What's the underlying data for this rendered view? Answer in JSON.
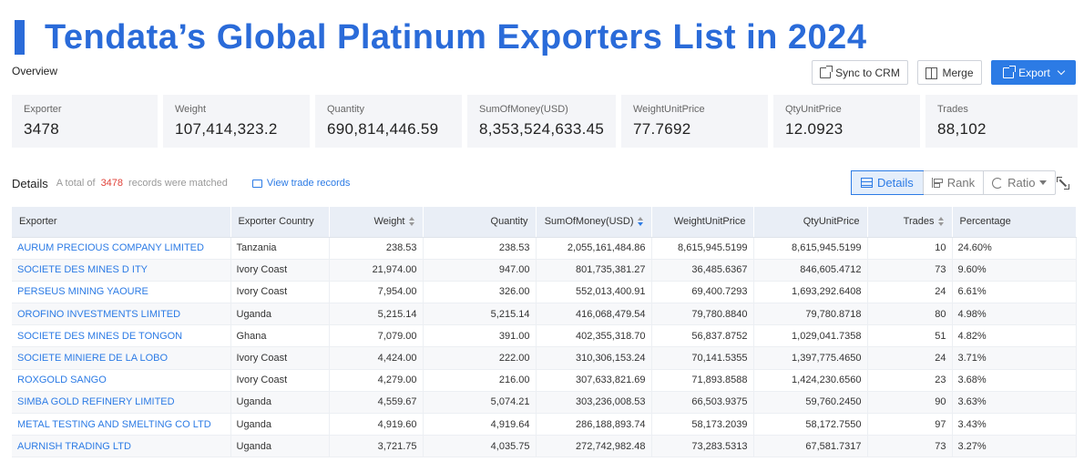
{
  "banner": {
    "title": "Tendata’s Global Platinum Exporters List in 2024"
  },
  "overview": {
    "label": "Overview"
  },
  "toolbar": {
    "sync_label": "Sync to CRM",
    "merge_label": "Merge",
    "export_label": "Export"
  },
  "stats": [
    {
      "label": "Exporter",
      "value": "3478"
    },
    {
      "label": "Weight",
      "value": "107,414,323.2"
    },
    {
      "label": "Quantity",
      "value": "690,814,446.59"
    },
    {
      "label": "SumOfMoney(USD)",
      "value": "8,353,524,633.45"
    },
    {
      "label": "WeightUnitPrice",
      "value": "77.7692"
    },
    {
      "label": "QtyUnitPrice",
      "value": "12.0923"
    },
    {
      "label": "Trades",
      "value": "88,102"
    }
  ],
  "details": {
    "title": "Details",
    "total_prefix": "A total of",
    "total_count": "3478",
    "total_suffix": "records were matched",
    "view_link": "View trade records"
  },
  "view_tabs": {
    "details": "Details",
    "rank": "Rank",
    "ratio": "Ratio"
  },
  "table": {
    "headers": [
      "Exporter",
      "Exporter Country",
      "Weight",
      "Quantity",
      "SumOfMoney(USD)",
      "WeightUnitPrice",
      "QtyUnitPrice",
      "Trades",
      "Percentage"
    ],
    "rows": [
      [
        "AURUM PRECIOUS COMPANY LIMITED",
        "Tanzania",
        "238.53",
        "238.53",
        "2,055,161,484.86",
        "8,615,945.5199",
        "8,615,945.5199",
        "10",
        "24.60%"
      ],
      [
        "SOCIETE DES MINES D ITY",
        "Ivory Coast",
        "21,974.00",
        "947.00",
        "801,735,381.27",
        "36,485.6367",
        "846,605.4712",
        "73",
        "9.60%"
      ],
      [
        "PERSEUS MINING YAOURE",
        "Ivory Coast",
        "7,954.00",
        "326.00",
        "552,013,400.91",
        "69,400.7293",
        "1,693,292.6408",
        "24",
        "6.61%"
      ],
      [
        "OROFINO INVESTMENTS LIMITED",
        "Uganda",
        "5,215.14",
        "5,215.14",
        "416,068,479.54",
        "79,780.8840",
        "79,780.8718",
        "80",
        "4.98%"
      ],
      [
        "SOCIETE DES MINES DE TONGON",
        "Ghana",
        "7,079.00",
        "391.00",
        "402,355,318.70",
        "56,837.8752",
        "1,029,041.7358",
        "51",
        "4.82%"
      ],
      [
        "SOCIETE MINIERE DE LA LOBO",
        "Ivory Coast",
        "4,424.00",
        "222.00",
        "310,306,153.24",
        "70,141.5355",
        "1,397,775.4650",
        "24",
        "3.71%"
      ],
      [
        "ROXGOLD SANGO",
        "Ivory Coast",
        "4,279.00",
        "216.00",
        "307,633,821.69",
        "71,893.8588",
        "1,424,230.6560",
        "23",
        "3.68%"
      ],
      [
        "SIMBA GOLD REFINERY LIMITED",
        "Uganda",
        "4,559.67",
        "5,074.21",
        "303,236,008.53",
        "66,503.9375",
        "59,760.2450",
        "90",
        "3.63%"
      ],
      [
        "METAL TESTING AND SMELTING CO LTD",
        "Uganda",
        "4,919.60",
        "4,919.64",
        "286,188,893.74",
        "58,173.2039",
        "58,172.7550",
        "97",
        "3.43%"
      ],
      [
        "AURNISH TRADING LTD",
        "Uganda",
        "3,721.75",
        "4,035.75",
        "272,742,982.48",
        "73,283.5313",
        "67,581.7317",
        "73",
        "3.27%"
      ]
    ]
  },
  "colors": {
    "accent": "#2c7be5",
    "banner": "#2a6bd9",
    "count": "#e0433a"
  }
}
